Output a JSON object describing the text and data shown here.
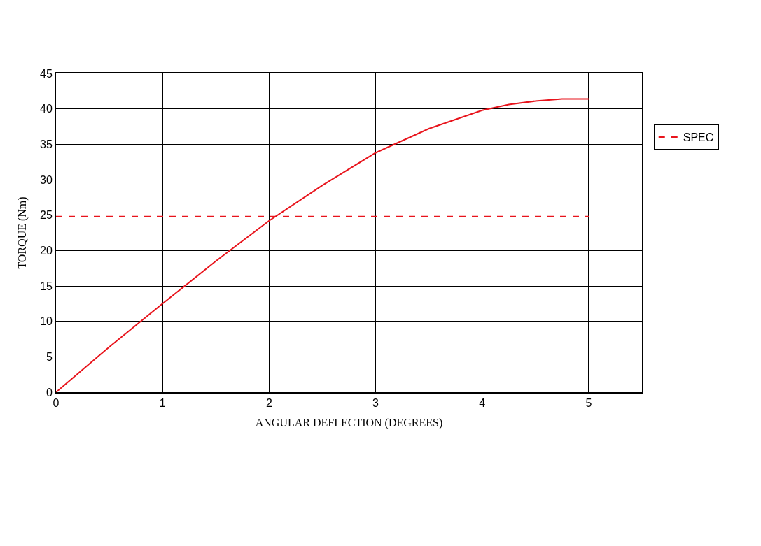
{
  "chart_data": {
    "type": "line",
    "xlabel": "ANGULAR DEFLECTION (DEGREES)",
    "ylabel": "TORQUE (Nm)",
    "series": [
      {
        "color": "#e8141c",
        "line_style": "solid",
        "x": [
          0,
          0.5,
          1,
          1.5,
          2,
          2.5,
          3,
          3.5,
          4,
          4.25,
          4.5,
          4.75,
          5
        ],
        "values": [
          0,
          6.4,
          12.5,
          18.5,
          24.2,
          29.2,
          33.8,
          37.2,
          39.8,
          40.6,
          41.1,
          41.4,
          41.4
        ]
      },
      {
        "name": "SPEC",
        "color": "#e8141c",
        "line_style": "dashed",
        "x": [
          0,
          5
        ],
        "values": [
          24.8,
          24.8
        ]
      }
    ],
    "xlim": [
      0,
      5.5
    ],
    "xticks": [
      0,
      1,
      2,
      3,
      4,
      5
    ],
    "ylim": [
      0,
      45
    ],
    "yticks": [
      0,
      5,
      10,
      15,
      20,
      25,
      30,
      35,
      40,
      45
    ],
    "grid": true,
    "legend": "right",
    "marker": "none"
  }
}
